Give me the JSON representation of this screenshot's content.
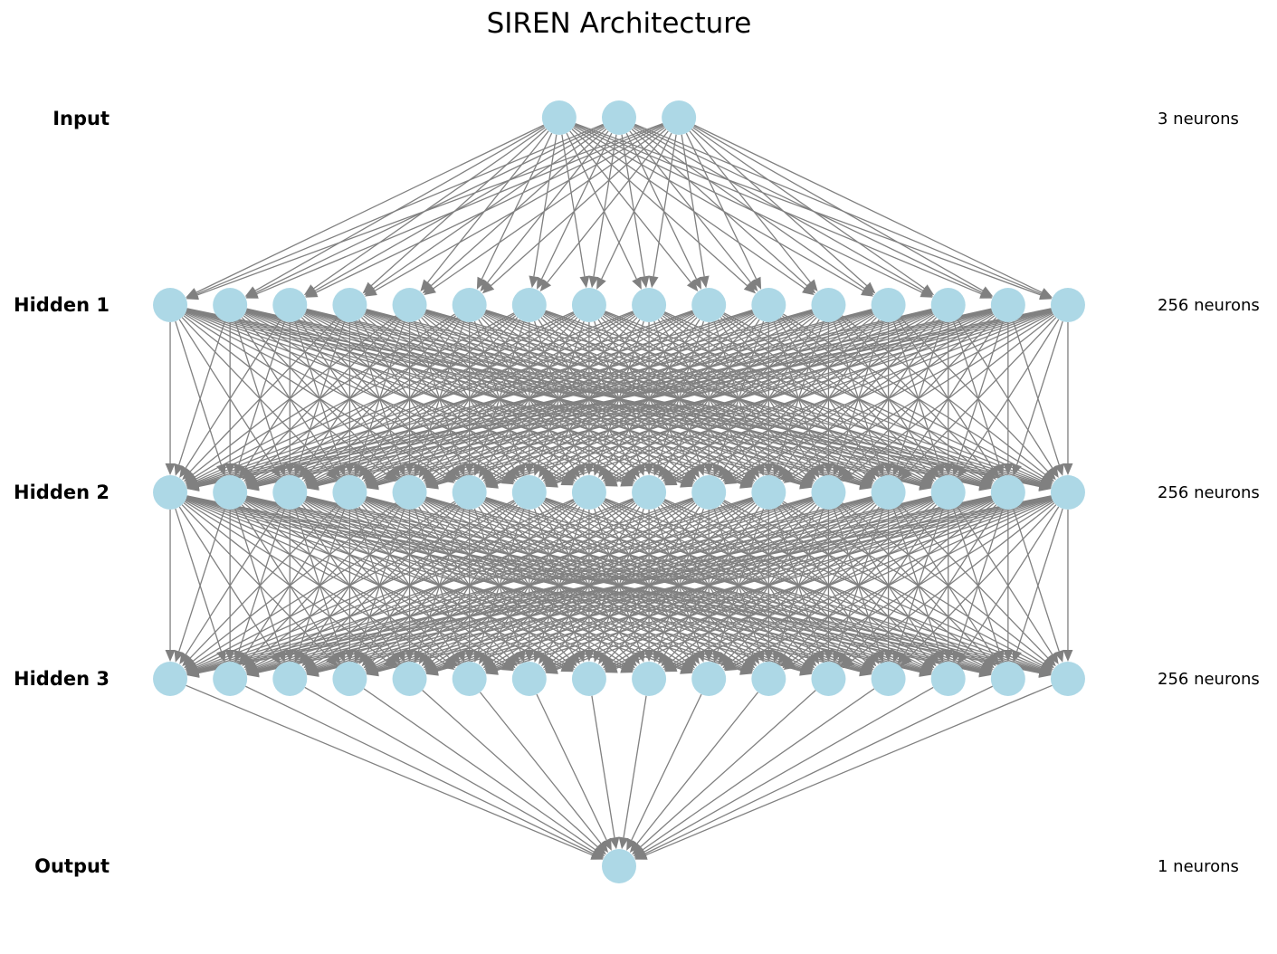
{
  "title": "SIREN Architecture",
  "colors": {
    "node": "#add8e6",
    "edge": "#808080",
    "text": "#000000",
    "background": "#ffffff"
  },
  "layers": [
    {
      "name": "Input",
      "count_label": "3 neurons",
      "drawn_nodes": 3
    },
    {
      "name": "Hidden 1",
      "count_label": "256 neurons",
      "drawn_nodes": 16
    },
    {
      "name": "Hidden 2",
      "count_label": "256 neurons",
      "drawn_nodes": 16
    },
    {
      "name": "Hidden 3",
      "count_label": "256 neurons",
      "drawn_nodes": 16
    },
    {
      "name": "Output",
      "count_label": "1 neurons",
      "drawn_nodes": 1
    }
  ]
}
